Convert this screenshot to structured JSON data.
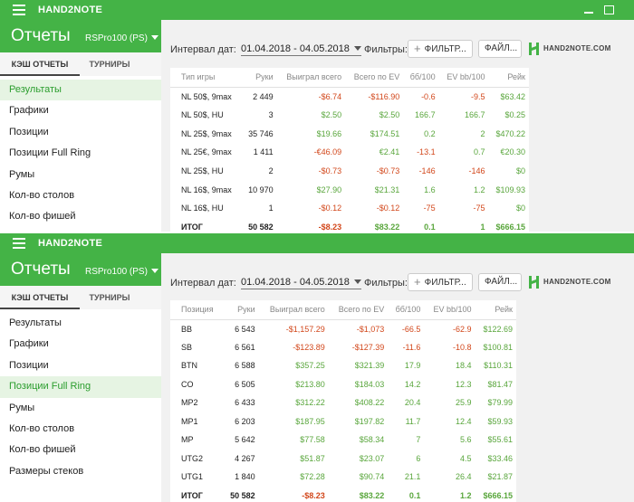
{
  "app_name": "HAND2NOTE",
  "sidebar": {
    "title": "Отчеты",
    "profile": "RSPro100 (PS)",
    "tabs": [
      "КЭШ ОТЧЕТЫ",
      "ТУРНИРЫ"
    ],
    "items_top": [
      "Результаты",
      "Графики",
      "Позиции",
      "Позиции Full Ring",
      "Румы",
      "Кол-во столов",
      "Кол-во фишей"
    ],
    "items_bottom": [
      "Результаты",
      "Графики",
      "Позиции",
      "Позиции Full Ring",
      "Румы",
      "Кол-во столов",
      "Кол-во фишей",
      "Размеры стеков"
    ]
  },
  "filters": {
    "interval_label": "Интервал дат:",
    "interval_value": "01.04.2018 - 04.05.2018",
    "filters_label": "Фильтры:",
    "filter_button": "ФИЛЬТР...",
    "file_button": "ФАЙЛ...",
    "logo_text": "HAND2NOTE.COM"
  },
  "table_top": {
    "columns": [
      "Тип игры",
      "Руки",
      "Выиграл всего",
      "Всего по EV",
      "бб/100",
      "EV bb/100",
      "Рейк"
    ],
    "rows": [
      [
        "NL 50$, 9max",
        "2 449",
        "-$6.74",
        "-$116.90",
        "-0.6",
        "-9.5",
        "$63.42"
      ],
      [
        "NL 50$, HU",
        "3",
        "$2.50",
        "$2.50",
        "166.7",
        "166.7",
        "$0.25"
      ],
      [
        "NL 25$, 9max",
        "35 746",
        "$19.66",
        "$174.51",
        "0.2",
        "2",
        "$470.22"
      ],
      [
        "NL 25€, 9max",
        "1 411",
        "-€46.09",
        "€2.41",
        "-13.1",
        "0.7",
        "€20.30"
      ],
      [
        "NL 25$, HU",
        "2",
        "-$0.73",
        "-$0.73",
        "-146",
        "-146",
        "$0"
      ],
      [
        "NL 16$, 9max",
        "10 970",
        "$27.90",
        "$21.31",
        "1.6",
        "1.2",
        "$109.93"
      ],
      [
        "NL 16$, HU",
        "1",
        "-$0.12",
        "-$0.12",
        "-75",
        "-75",
        "$0"
      ]
    ],
    "total": [
      "ИТОГ",
      "50 582",
      "-$8.23",
      "$83.22",
      "0.1",
      "1",
      "$666.15"
    ]
  },
  "table_bottom": {
    "columns": [
      "Позиция",
      "Руки",
      "Выиграл всего",
      "Всего по EV",
      "бб/100",
      "EV bb/100",
      "Рейк"
    ],
    "rows": [
      [
        "BB",
        "6 543",
        "-$1,157.29",
        "-$1,073",
        "-66.5",
        "-62.9",
        "$122.69"
      ],
      [
        "SB",
        "6 561",
        "-$123.89",
        "-$127.39",
        "-11.6",
        "-10.8",
        "$100.81"
      ],
      [
        "BTN",
        "6 588",
        "$357.25",
        "$321.39",
        "17.9",
        "18.4",
        "$110.31"
      ],
      [
        "CO",
        "6 505",
        "$213.80",
        "$184.03",
        "14.2",
        "12.3",
        "$81.47"
      ],
      [
        "MP2",
        "6 433",
        "$312.22",
        "$408.22",
        "20.4",
        "25.9",
        "$79.99"
      ],
      [
        "MP1",
        "6 203",
        "$187.95",
        "$197.82",
        "11.7",
        "12.4",
        "$59.93"
      ],
      [
        "MP",
        "5 642",
        "$77.58",
        "$58.34",
        "7",
        "5.6",
        "$55.61"
      ],
      [
        "UTG2",
        "4 267",
        "$51.87",
        "$23.07",
        "6",
        "4.5",
        "$33.46"
      ],
      [
        "UTG1",
        "1 840",
        "$72.28",
        "$90.74",
        "21.1",
        "26.4",
        "$21.87"
      ]
    ],
    "total": [
      "ИТОГ",
      "50 582",
      "-$8.23",
      "$83.22",
      "0.1",
      "1.2",
      "$666.15"
    ]
  },
  "colors": {
    "brand_green": "#44b346",
    "positive": "#59a63c",
    "negative": "#d2471b"
  }
}
